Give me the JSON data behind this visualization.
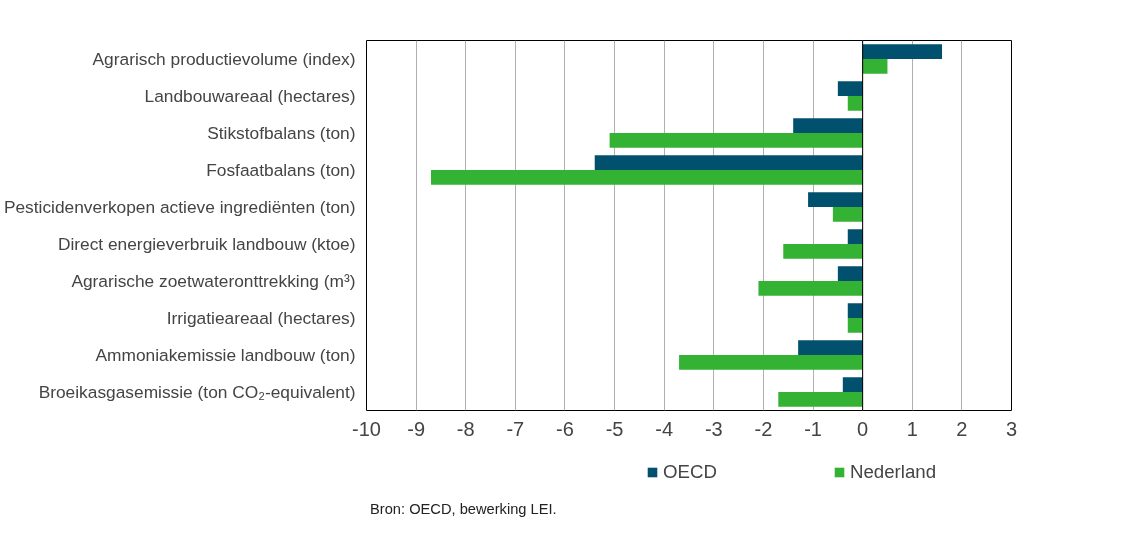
{
  "chart_data": {
    "type": "bar",
    "orientation": "horizontal",
    "categories": [
      "Agrarisch productievolume (index)",
      "Landbouwareaal (hectares)",
      "Stikstofbalans (ton)",
      "Fosfaatbalans (ton)",
      "Pesticidenverkopen actieve ingrediënten (ton)",
      "Direct energieverbruik landbouw (ktoe)",
      "Agrarische zoetwateronttrekking (m³)",
      "Irrigatieareaal (hectares)",
      "Ammoniakemissie landbouw (ton)",
      "Broeikasgasemissie (ton CO₂-equivalent)"
    ],
    "series": [
      {
        "name": "OECD",
        "color": "#00506e",
        "values": [
          1.6,
          -0.5,
          -1.4,
          -5.4,
          -1.1,
          -0.3,
          -0.5,
          -0.3,
          -1.3,
          -0.4
        ]
      },
      {
        "name": "Nederland",
        "color": "#34b233",
        "values": [
          0.5,
          -0.3,
          -5.1,
          -8.7,
          -0.6,
          -1.6,
          -2.1,
          -0.3,
          -3.7,
          -1.7
        ]
      }
    ],
    "xlim": [
      -10,
      3
    ],
    "xticks": [
      -10,
      -9,
      -8,
      -7,
      -6,
      -5,
      -4,
      -3,
      -2,
      -1,
      0,
      1,
      2,
      3
    ],
    "grid": "x",
    "legend": "bottom",
    "annotations": [
      "Bron: OECD, bewerking LEI."
    ]
  }
}
